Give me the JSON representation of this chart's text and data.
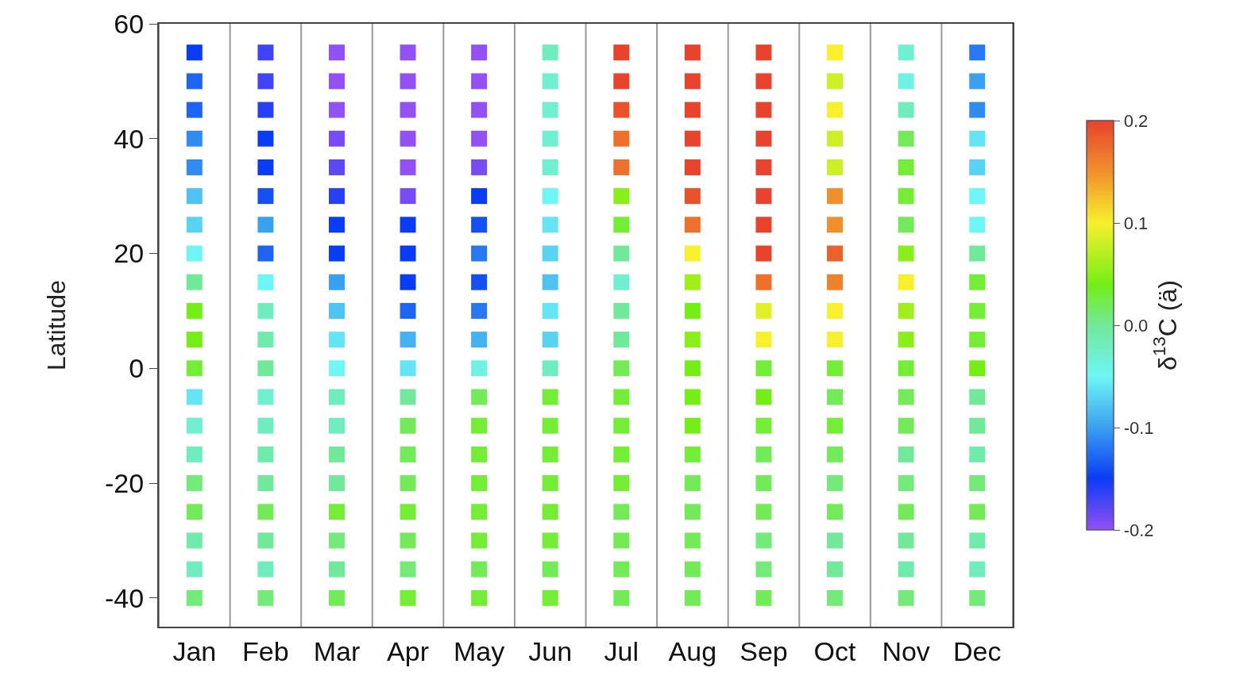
{
  "chart_data": {
    "type": "scatter",
    "ylabel": "Latitude",
    "clabel": "δ$^{13}$C (ä)",
    "categories": [
      "Jan",
      "Feb",
      "Mar",
      "Apr",
      "May",
      "Jun",
      "Jul",
      "Aug",
      "Sep",
      "Oct",
      "Nov",
      "Dec"
    ],
    "ylim": [
      -45,
      60
    ],
    "yticks": [
      -40,
      -20,
      0,
      20,
      40,
      60
    ],
    "marker": "square",
    "clim": [
      -0.2,
      0.2
    ],
    "cticks": [
      -0.2,
      -0.1,
      {
        "value": 0,
        "label": "0.0"
      },
      0.1,
      0.2
    ],
    "series": [
      {
        "x": [
          "Jan",
          "Feb",
          "Mar",
          "Apr",
          "May",
          "Jun",
          "Jul",
          "Aug",
          "Sep",
          "Oct",
          "Nov",
          "Dec",
          "Jan",
          "Feb",
          "Mar",
          "Apr",
          "May",
          "Jun",
          "Jul",
          "Aug",
          "Sep",
          "Oct",
          "Nov",
          "Dec",
          "Jan",
          "Feb",
          "Mar",
          "Apr",
          "May",
          "Jun",
          "Jul",
          "Aug",
          "Sep",
          "Oct",
          "Nov",
          "Dec",
          "Jan",
          "Feb",
          "Mar",
          "Apr",
          "May",
          "Jun",
          "Jul",
          "Aug",
          "Sep",
          "Oct",
          "Nov",
          "Dec",
          "Jan",
          "Feb",
          "Mar",
          "Apr",
          "May",
          "Jun",
          "Jul",
          "Aug",
          "Sep",
          "Oct",
          "Nov",
          "Dec",
          "Jan",
          "Feb",
          "Mar",
          "Apr",
          "May",
          "Jun",
          "Jul",
          "Aug",
          "Sep",
          "Oct",
          "Nov",
          "Dec",
          "Jan",
          "Feb",
          "Mar",
          "Apr",
          "May",
          "Jun",
          "Jul",
          "Aug",
          "Sep",
          "Oct",
          "Nov",
          "Dec",
          "Jan",
          "Feb",
          "Mar",
          "Apr",
          "May",
          "Jun",
          "Jul",
          "Aug",
          "Sep",
          "Oct",
          "Nov",
          "Dec",
          "Jan",
          "Feb",
          "Mar",
          "Apr",
          "May",
          "Jun",
          "Jul",
          "Aug",
          "Sep",
          "Oct",
          "Nov",
          "Dec",
          "Jan",
          "Feb",
          "Mar",
          "Apr",
          "May",
          "Jun",
          "Jul",
          "Aug",
          "Sep",
          "Oct",
          "Nov",
          "Dec",
          "Jan",
          "Feb",
          "Mar",
          "Apr",
          "May",
          "Jun",
          "Jul",
          "Aug",
          "Sep",
          "Oct",
          "Nov",
          "Dec",
          "Jan",
          "Feb",
          "Mar",
          "Apr",
          "May",
          "Jun",
          "Jul",
          "Aug",
          "Sep",
          "Oct",
          "Nov",
          "Dec",
          "Jan",
          "Feb",
          "Mar",
          "Apr",
          "May",
          "Jun",
          "Jul",
          "Aug",
          "Sep",
          "Oct",
          "Nov",
          "Dec",
          "Jan",
          "Feb",
          "Mar",
          "Apr",
          "May",
          "Jun",
          "Jul",
          "Aug",
          "Sep",
          "Oct",
          "Nov",
          "Dec",
          "Jan",
          "Feb",
          "Mar",
          "Apr",
          "May",
          "Jun",
          "Jul",
          "Aug",
          "Sep",
          "Oct",
          "Nov",
          "Dec",
          "Jan",
          "Feb",
          "Mar",
          "Apr",
          "May",
          "Jun",
          "Jul",
          "Aug",
          "Sep",
          "Oct",
          "Nov",
          "Dec",
          "Jan",
          "Feb",
          "Mar",
          "Apr",
          "May",
          "Jun",
          "Jul",
          "Aug",
          "Sep",
          "Oct",
          "Nov",
          "Dec",
          "Jan",
          "Feb",
          "Mar",
          "Apr",
          "May",
          "Jun",
          "Jul",
          "Aug",
          "Sep",
          "Oct",
          "Nov",
          "Dec",
          "Jan",
          "Feb",
          "Mar",
          "Apr",
          "May",
          "Jun",
          "Jul",
          "Aug",
          "Sep",
          "Oct",
          "Nov",
          "Dec",
          "Jan",
          "Feb",
          "Mar",
          "Apr",
          "May",
          "Jun",
          "Jul",
          "Aug",
          "Sep",
          "Oct",
          "Nov",
          "Dec"
        ],
        "values": [
          55,
          55,
          55,
          55,
          55,
          55,
          55,
          55,
          55,
          55,
          55,
          55,
          50,
          50,
          50,
          50,
          50,
          50,
          50,
          50,
          50,
          50,
          50,
          50,
          45,
          45,
          45,
          45,
          45,
          45,
          45,
          45,
          45,
          45,
          45,
          45,
          40,
          40,
          40,
          40,
          40,
          40,
          40,
          40,
          40,
          40,
          40,
          40,
          35,
          35,
          35,
          35,
          35,
          35,
          35,
          35,
          35,
          35,
          35,
          35,
          30,
          30,
          30,
          30,
          30,
          30,
          30,
          30,
          30,
          30,
          30,
          30,
          25,
          25,
          25,
          25,
          25,
          25,
          25,
          25,
          25,
          25,
          25,
          25,
          20,
          20,
          20,
          20,
          20,
          20,
          20,
          20,
          20,
          20,
          20,
          20,
          15,
          15,
          15,
          15,
          15,
          15,
          15,
          15,
          15,
          15,
          15,
          15,
          10,
          10,
          10,
          10,
          10,
          10,
          10,
          10,
          10,
          10,
          10,
          10,
          5,
          5,
          5,
          5,
          5,
          5,
          5,
          5,
          5,
          5,
          5,
          5,
          0,
          0,
          0,
          0,
          0,
          0,
          0,
          0,
          0,
          0,
          0,
          0,
          -5,
          -5,
          -5,
          -5,
          -5,
          -5,
          -5,
          -5,
          -5,
          -5,
          -5,
          -5,
          -10,
          -10,
          -10,
          -10,
          -10,
          -10,
          -10,
          -10,
          -10,
          -10,
          -10,
          -10,
          -15,
          -15,
          -15,
          -15,
          -15,
          -15,
          -15,
          -15,
          -15,
          -15,
          -15,
          -15,
          -20,
          -20,
          -20,
          -20,
          -20,
          -20,
          -20,
          -20,
          -20,
          -20,
          -20,
          -20,
          -25,
          -25,
          -25,
          -25,
          -25,
          -25,
          -25,
          -25,
          -25,
          -25,
          -25,
          -25,
          -30,
          -30,
          -30,
          -30,
          -30,
          -30,
          -30,
          -30,
          -30,
          -30,
          -30,
          -30,
          -35,
          -35,
          -35,
          -35,
          -35,
          -35,
          -35,
          -35,
          -35,
          -35,
          -35,
          -35,
          -40,
          -40,
          -40,
          -40,
          -40,
          -40,
          -40,
          -40,
          -40,
          -40,
          -40,
          -40
        ],
        "cvalues": [
          -0.15,
          -0.17,
          -0.2,
          -0.2,
          -0.2,
          -0.02,
          0.2,
          0.2,
          0.2,
          0.1,
          -0.03,
          -0.12,
          -0.13,
          -0.17,
          -0.2,
          -0.2,
          -0.2,
          -0.03,
          0.2,
          0.2,
          0.2,
          0.08,
          -0.04,
          -0.1,
          -0.13,
          -0.16,
          -0.2,
          -0.2,
          -0.2,
          -0.03,
          0.19,
          0.2,
          0.2,
          0.1,
          -0.02,
          -0.11,
          -0.11,
          -0.15,
          -0.19,
          -0.2,
          -0.2,
          -0.03,
          0.17,
          0.2,
          0.2,
          0.08,
          0.02,
          -0.06,
          -0.11,
          -0.15,
          -0.18,
          -0.2,
          -0.19,
          -0.03,
          0.17,
          0.2,
          0.2,
          0.08,
          0.03,
          -0.07,
          -0.08,
          -0.14,
          -0.16,
          -0.19,
          -0.15,
          -0.05,
          0.05,
          0.19,
          0.2,
          0.15,
          0.03,
          -0.05,
          -0.07,
          -0.1,
          -0.15,
          -0.15,
          -0.14,
          -0.06,
          0.03,
          0.17,
          0.2,
          0.15,
          0.02,
          -0.05,
          -0.05,
          -0.13,
          -0.15,
          -0.15,
          -0.12,
          -0.07,
          0.0,
          0.1,
          0.2,
          0.18,
          0.05,
          0.0,
          0.0,
          -0.05,
          -0.1,
          -0.15,
          -0.14,
          -0.08,
          -0.03,
          0.06,
          0.17,
          0.16,
          0.1,
          0.03,
          0.04,
          -0.02,
          -0.08,
          -0.13,
          -0.12,
          -0.06,
          0.0,
          0.04,
          0.09,
          0.1,
          0.06,
          0.03,
          0.04,
          -0.01,
          -0.06,
          -0.09,
          -0.09,
          -0.07,
          0.0,
          0.05,
          0.1,
          0.1,
          0.05,
          0.03,
          0.03,
          0.0,
          -0.05,
          -0.06,
          -0.04,
          -0.02,
          0.02,
          0.04,
          0.03,
          0.03,
          0.03,
          0.04,
          -0.06,
          -0.03,
          -0.02,
          0.0,
          0.02,
          0.03,
          0.03,
          0.04,
          0.04,
          0.02,
          0.02,
          0.0,
          -0.03,
          -0.02,
          -0.02,
          0.02,
          0.03,
          0.03,
          0.03,
          0.04,
          0.03,
          0.03,
          0.02,
          0.0,
          -0.02,
          -0.01,
          0.0,
          0.02,
          0.03,
          0.03,
          0.03,
          0.03,
          0.02,
          0.02,
          0.0,
          -0.01,
          0.01,
          0.0,
          0.0,
          0.02,
          0.03,
          0.03,
          0.03,
          0.02,
          0.02,
          0.01,
          0.01,
          0.01,
          0.02,
          0.02,
          0.03,
          0.03,
          0.03,
          0.03,
          0.02,
          0.02,
          0.02,
          0.02,
          0.02,
          0.02,
          -0.01,
          0.0,
          0.01,
          0.02,
          0.03,
          0.03,
          0.02,
          0.02,
          0.01,
          0.0,
          0.0,
          -0.01,
          -0.02,
          -0.02,
          0.0,
          0.01,
          0.02,
          0.02,
          0.02,
          0.02,
          0.01,
          0.0,
          -0.01,
          -0.02,
          0.01,
          0.01,
          0.02,
          0.03,
          0.03,
          0.03,
          0.02,
          0.02,
          0.02,
          0.01,
          0.01,
          0.01
        ]
      }
    ]
  }
}
